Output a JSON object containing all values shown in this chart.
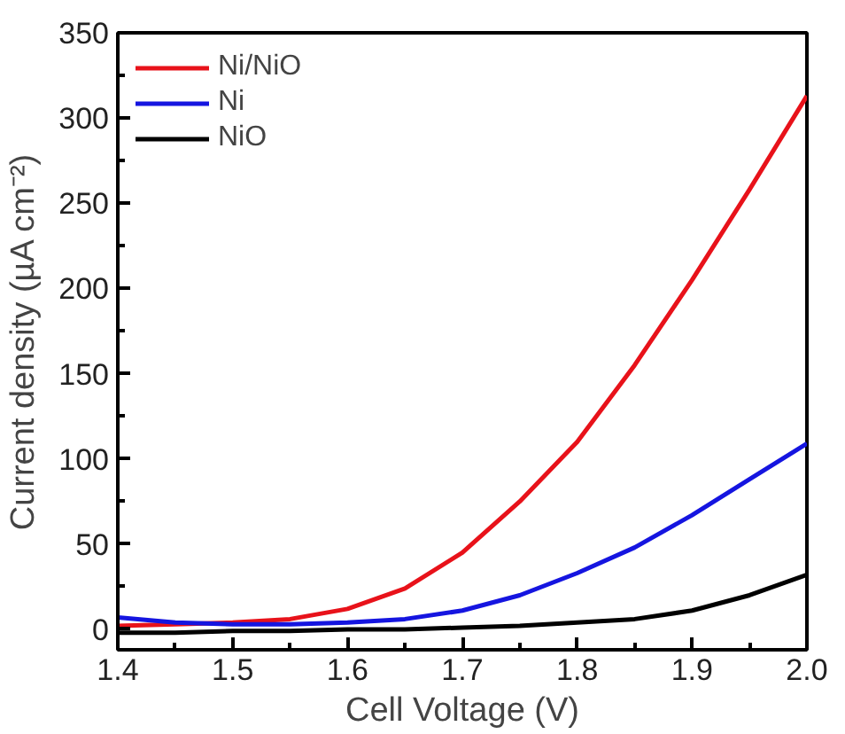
{
  "chart_data": {
    "type": "line",
    "xlabel": "Cell Voltage (V)",
    "ylabel": "Current density (µA cm⁻²)",
    "x": [
      1.4,
      1.45,
      1.5,
      1.55,
      1.6,
      1.65,
      1.7,
      1.75,
      1.8,
      1.85,
      1.9,
      1.95,
      2.0
    ],
    "series": [
      {
        "name": "Ni/NiO",
        "color": "#e8121a",
        "values": [
          2,
          3,
          4,
          6,
          12,
          24,
          45,
          75,
          110,
          155,
          205,
          258,
          313
        ]
      },
      {
        "name": "Ni",
        "color": "#1515e0",
        "values": [
          7,
          4,
          3,
          3,
          4,
          6,
          11,
          20,
          33,
          48,
          67,
          88,
          109
        ]
      },
      {
        "name": "NiO",
        "color": "#000000",
        "values": [
          -2,
          -2,
          -1,
          -1,
          0,
          0,
          1,
          2,
          4,
          6,
          11,
          20,
          32
        ]
      }
    ],
    "xlim": [
      1.4,
      2.0
    ],
    "xticks": [
      1.4,
      1.5,
      1.6,
      1.7,
      1.8,
      1.9,
      {
        "value": 2,
        "label": "2.0"
      }
    ],
    "ylim": [
      -12,
      350
    ],
    "yticks": [
      0,
      50,
      100,
      150,
      200,
      250,
      300,
      350
    ],
    "grid": false,
    "legend": "top left",
    "marker": "none",
    "line_style": "solid"
  }
}
